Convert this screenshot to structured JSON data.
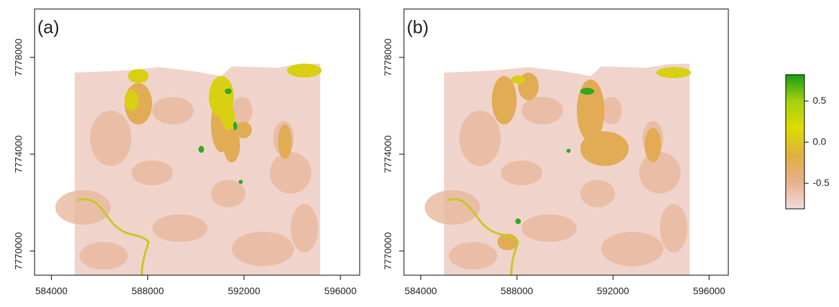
{
  "chart_data": [
    {
      "type": "raster",
      "title": "(a)",
      "xlim": [
        583300,
        596800
      ],
      "ylim": [
        7769000,
        7780000
      ],
      "xticks": [
        584000,
        588000,
        592000,
        596000
      ],
      "yticks": [
        7770000,
        7774000,
        7778000
      ]
    },
    {
      "type": "raster",
      "title": "(b)",
      "xlim": [
        583300,
        596800
      ],
      "ylim": [
        7769000,
        7780000
      ],
      "xticks": [
        584000,
        588000,
        592000,
        596000
      ],
      "yticks": [
        7770000,
        7774000,
        7778000
      ]
    }
  ],
  "colorbar": {
    "lim": [
      -0.81,
      0.82
    ],
    "ticks": [
      -0.5,
      {
        "value": 0,
        "label": "0.0"
      },
      0.5
    ],
    "colors": [
      "#f2dcdc",
      "#e8b08c",
      "#e0b040",
      "#dcdc00",
      "#a8d010",
      "#14a014"
    ]
  }
}
